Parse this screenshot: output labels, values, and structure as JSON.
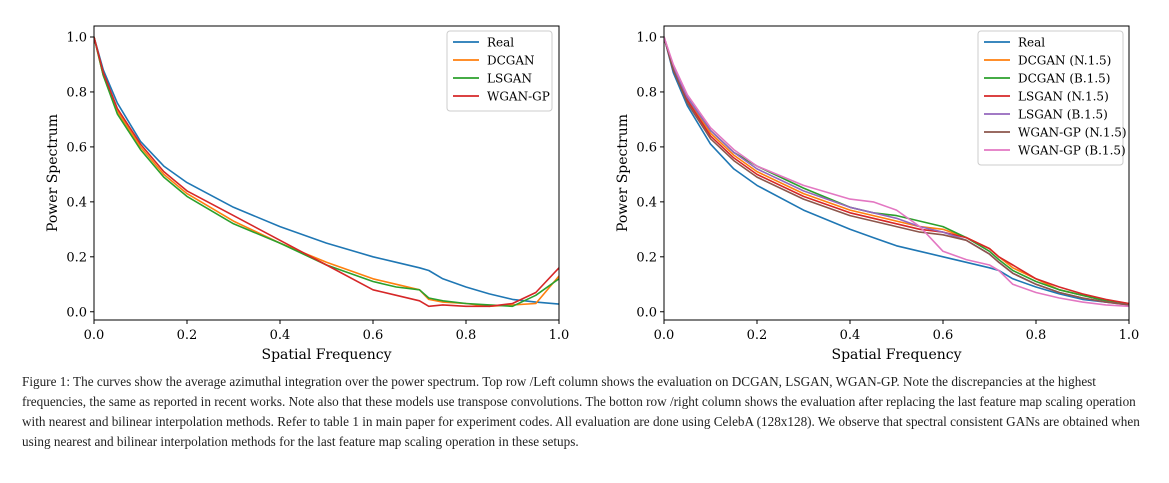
{
  "chart_data": [
    {
      "type": "line",
      "xlabel": "Spatial Frequency",
      "ylabel": "Power Spectrum",
      "xlim": [
        0.0,
        1.0
      ],
      "ylim": [
        -0.03,
        1.04
      ],
      "xticks": [
        "0.0",
        "0.2",
        "0.4",
        "0.6",
        "0.8",
        "1.0"
      ],
      "yticks": [
        "0.0",
        "0.2",
        "0.4",
        "0.6",
        "0.8",
        "1.0"
      ],
      "legend": "top-right",
      "x": [
        0.0,
        0.02,
        0.05,
        0.1,
        0.15,
        0.2,
        0.3,
        0.4,
        0.5,
        0.6,
        0.65,
        0.7,
        0.72,
        0.75,
        0.8,
        0.85,
        0.9,
        0.95,
        1.0
      ],
      "series": [
        {
          "name": "Real",
          "color": "#1f77b4",
          "values": [
            1.0,
            0.88,
            0.76,
            0.62,
            0.53,
            0.47,
            0.38,
            0.31,
            0.25,
            0.2,
            0.18,
            0.16,
            0.15,
            0.12,
            0.09,
            0.065,
            0.045,
            0.035,
            0.028
          ]
        },
        {
          "name": "DCGAN",
          "color": "#ff7f0e",
          "values": [
            1.0,
            0.86,
            0.73,
            0.6,
            0.5,
            0.43,
            0.33,
            0.25,
            0.18,
            0.12,
            0.1,
            0.08,
            0.045,
            0.035,
            0.03,
            0.02,
            0.025,
            0.03,
            0.13
          ]
        },
        {
          "name": "LSGAN",
          "color": "#2ca02c",
          "values": [
            1.0,
            0.86,
            0.72,
            0.59,
            0.49,
            0.42,
            0.32,
            0.25,
            0.17,
            0.11,
            0.09,
            0.08,
            0.05,
            0.04,
            0.03,
            0.025,
            0.02,
            0.06,
            0.12
          ]
        },
        {
          "name": "WGAN-GP",
          "color": "#d62728",
          "values": [
            1.0,
            0.87,
            0.74,
            0.61,
            0.51,
            0.44,
            0.35,
            0.26,
            0.17,
            0.08,
            0.06,
            0.04,
            0.02,
            0.025,
            0.02,
            0.02,
            0.03,
            0.07,
            0.16
          ]
        }
      ]
    },
    {
      "type": "line",
      "xlabel": "Spatial Frequency",
      "ylabel": "Power Spectrum",
      "xlim": [
        0.0,
        1.0
      ],
      "ylim": [
        -0.03,
        1.04
      ],
      "xticks": [
        "0.0",
        "0.2",
        "0.4",
        "0.6",
        "0.8",
        "1.0"
      ],
      "yticks": [
        "0.0",
        "0.2",
        "0.4",
        "0.6",
        "0.8",
        "1.0"
      ],
      "legend": "top-right",
      "x": [
        0.0,
        0.02,
        0.05,
        0.1,
        0.15,
        0.2,
        0.3,
        0.4,
        0.45,
        0.5,
        0.55,
        0.6,
        0.65,
        0.7,
        0.72,
        0.75,
        0.8,
        0.85,
        0.9,
        0.95,
        1.0
      ],
      "series": [
        {
          "name": "Real",
          "color": "#1f77b4",
          "values": [
            1.0,
            0.87,
            0.75,
            0.61,
            0.52,
            0.46,
            0.37,
            0.3,
            0.27,
            0.24,
            0.22,
            0.2,
            0.18,
            0.16,
            0.15,
            0.12,
            0.09,
            0.065,
            0.045,
            0.035,
            0.028
          ]
        },
        {
          "name": "DCGAN (N.1.5)",
          "color": "#ff7f0e",
          "values": [
            1.0,
            0.89,
            0.78,
            0.65,
            0.57,
            0.51,
            0.43,
            0.37,
            0.35,
            0.33,
            0.31,
            0.3,
            0.27,
            0.23,
            0.2,
            0.16,
            0.12,
            0.08,
            0.06,
            0.04,
            0.03
          ]
        },
        {
          "name": "DCGAN (B.1.5)",
          "color": "#2ca02c",
          "values": [
            1.0,
            0.89,
            0.78,
            0.66,
            0.58,
            0.53,
            0.45,
            0.38,
            0.36,
            0.35,
            0.33,
            0.31,
            0.27,
            0.22,
            0.19,
            0.15,
            0.11,
            0.08,
            0.06,
            0.04,
            0.025
          ]
        },
        {
          "name": "LSGAN (N.1.5)",
          "color": "#d62728",
          "values": [
            1.0,
            0.88,
            0.77,
            0.64,
            0.56,
            0.5,
            0.42,
            0.36,
            0.34,
            0.32,
            0.3,
            0.29,
            0.27,
            0.23,
            0.2,
            0.17,
            0.12,
            0.09,
            0.065,
            0.045,
            0.03
          ]
        },
        {
          "name": "LSGAN (B.1.5)",
          "color": "#9467bd",
          "values": [
            1.0,
            0.89,
            0.78,
            0.66,
            0.58,
            0.52,
            0.44,
            0.38,
            0.36,
            0.34,
            0.31,
            0.29,
            0.26,
            0.21,
            0.18,
            0.14,
            0.1,
            0.07,
            0.05,
            0.035,
            0.025
          ]
        },
        {
          "name": "WGAN-GP (N.1.5)",
          "color": "#8c564b",
          "values": [
            1.0,
            0.88,
            0.76,
            0.63,
            0.55,
            0.49,
            0.41,
            0.35,
            0.33,
            0.31,
            0.29,
            0.28,
            0.26,
            0.21,
            0.18,
            0.14,
            0.1,
            0.07,
            0.05,
            0.035,
            0.025
          ]
        },
        {
          "name": "WGAN-GP (B.1.5)",
          "color": "#e377c2",
          "values": [
            1.0,
            0.9,
            0.79,
            0.67,
            0.59,
            0.53,
            0.46,
            0.41,
            0.4,
            0.37,
            0.31,
            0.22,
            0.19,
            0.17,
            0.15,
            0.1,
            0.07,
            0.05,
            0.035,
            0.025,
            0.02
          ]
        }
      ]
    }
  ],
  "caption": "Figure 1: The curves show the average azimuthal integration over the power spectrum. Top row /Left column shows the evaluation on DCGAN, LSGAN, WGAN-GP. Note the discrepancies at the highest frequencies, the same as reported in recent works. Note also that these models use transpose convolutions. The botton row /right column shows the evaluation after replacing the last feature map scaling operation with nearest and bilinear interpolation methods. Refer to table 1 in main paper for experiment codes. All evaluation are done using CelebA (128x128). We observe that spectral consistent GANs are obtained when using nearest and bilinear interpolation methods for the last feature map scaling operation in these setups."
}
